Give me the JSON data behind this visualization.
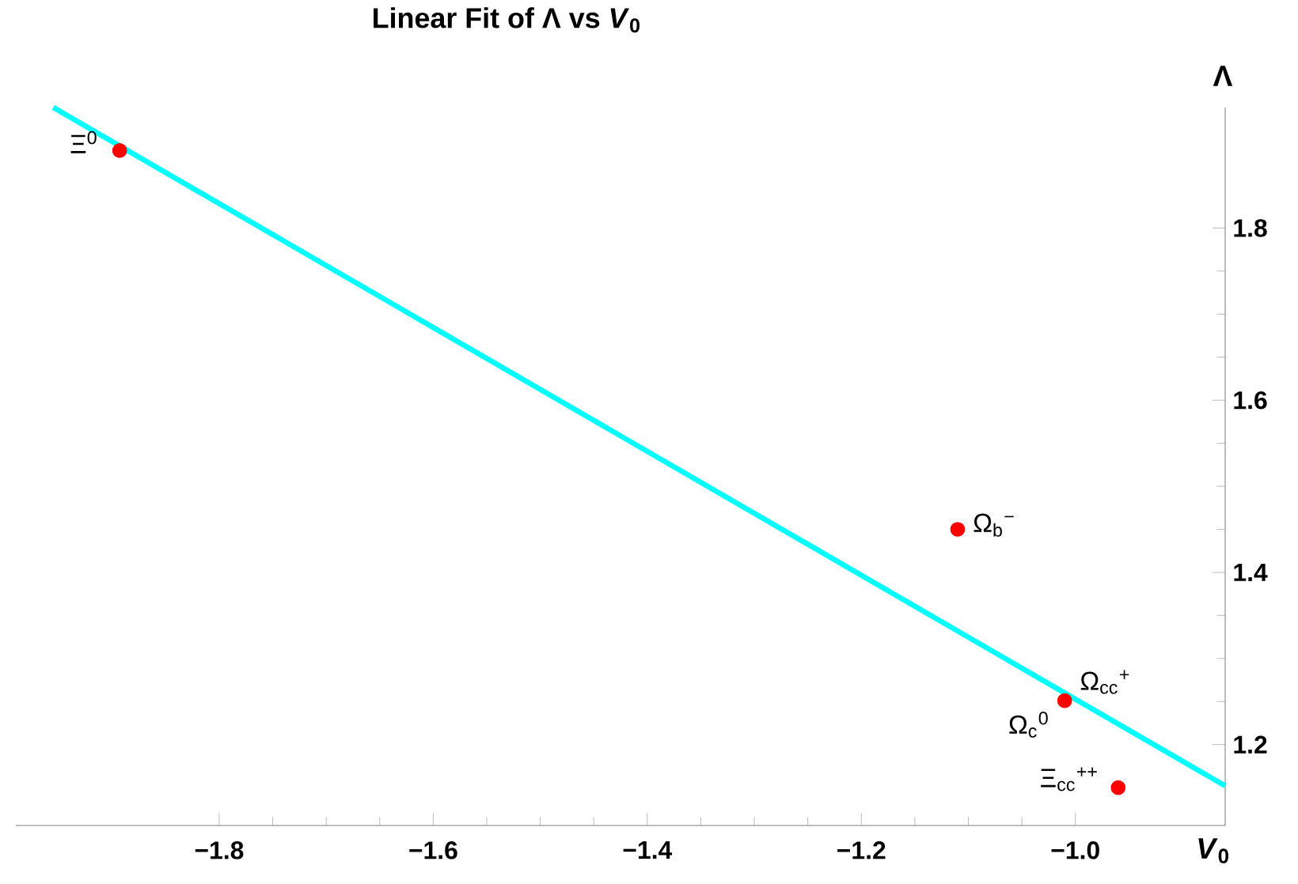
{
  "chart_data": {
    "type": "scatter",
    "title": "Linear Fit of Λ vs *V*$_{0}$",
    "xlabel": "*V*$_{0}$",
    "ylabel": "Λ",
    "series": [
      {
        "marker": "circle",
        "color": "#ff0000",
        "x": [
          -1.893,
          -1.11,
          -1.01,
          -0.96
        ],
        "values": [
          1.89,
          1.45,
          1.251,
          1.15
        ]
      },
      {
        "type": "line",
        "color": "#00ffff",
        "x": [
          -1.955,
          -0.86
        ],
        "values": [
          1.94,
          1.152
        ]
      }
    ],
    "annotations": [
      {
        "text": "Ξ$^{0}$",
        "x": -1.893,
        "y": 1.89
      },
      {
        "text": "Ω$_{b}$$^{−}$",
        "x": -1.11,
        "y": 1.45
      },
      {
        "text": "Ω$_{c}$$^{0}$",
        "x": -1.01,
        "y": 1.251
      },
      {
        "text": "Ω$_{cc}$$^{+}$",
        "x": -1.01,
        "y": 1.251
      },
      {
        "text": "Ξ$_{cc}$$^{++}$",
        "x": -0.96,
        "y": 1.15
      }
    ],
    "xlim": [
      -1.99,
      -0.86
    ],
    "ylim": [
      1.106,
      1.94
    ],
    "xticks": [
      {
        "value": -1.8,
        "label": "−1.8"
      },
      {
        "value": -1.6,
        "label": "−1.6"
      },
      {
        "value": -1.4,
        "label": "−1.4"
      },
      {
        "value": -1.2,
        "label": "−1.2"
      },
      {
        "value": -1.0,
        "label": "−1.0"
      }
    ],
    "yticks": [
      1.2,
      1.4,
      1.6,
      1.8
    ],
    "grid": false,
    "line_style": "solid"
  }
}
